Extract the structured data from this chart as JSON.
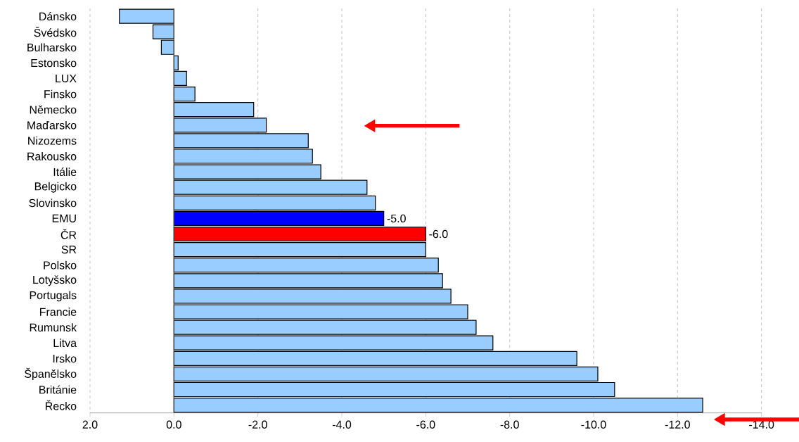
{
  "chart_data": {
    "type": "bar",
    "orientation": "horizontal",
    "categories": [
      "Dánsko",
      "Švédsko",
      "Bulharsko",
      "Estonsko",
      "LUX",
      "Finsko",
      "Německo",
      "Maďarsko",
      "Nizozems",
      "Rakousko",
      "Itálie",
      "Belgicko",
      "Slovinsko",
      "EMU",
      "ČR",
      "SR",
      "Polsko",
      "Lotyšsko",
      "Portugals",
      "Francie",
      "Rumunsk",
      "Litva",
      "Irsko",
      "Španělsko",
      "Británie",
      "Řecko"
    ],
    "values": [
      1.3,
      0.5,
      0.3,
      -0.1,
      -0.3,
      -0.5,
      -1.9,
      -2.2,
      -3.2,
      -3.3,
      -3.5,
      -4.6,
      -4.8,
      -5.0,
      -6.0,
      -6.0,
      -6.3,
      -6.4,
      -6.6,
      -7.0,
      -7.2,
      -7.6,
      -9.6,
      -10.1,
      -10.5,
      -12.6
    ],
    "colors": [
      "#99ccff",
      "#99ccff",
      "#99ccff",
      "#99ccff",
      "#99ccff",
      "#99ccff",
      "#99ccff",
      "#99ccff",
      "#99ccff",
      "#99ccff",
      "#99ccff",
      "#99ccff",
      "#99ccff",
      "#0000ff",
      "#ff0000",
      "#99ccff",
      "#99ccff",
      "#99ccff",
      "#99ccff",
      "#99ccff",
      "#99ccff",
      "#99ccff",
      "#99ccff",
      "#99ccff",
      "#99ccff",
      "#99ccff"
    ],
    "value_labels": [
      null,
      null,
      null,
      null,
      null,
      null,
      null,
      null,
      null,
      null,
      null,
      null,
      null,
      "-5.0",
      "-6.0",
      null,
      null,
      null,
      null,
      null,
      null,
      null,
      null,
      null,
      null,
      null
    ],
    "xlim": [
      2,
      -14
    ],
    "xticks": [
      {
        "value": 2,
        "label": "2.0"
      },
      {
        "value": 0,
        "label": "0.0"
      },
      {
        "value": -2,
        "label": "-2.0"
      },
      {
        "value": -4,
        "label": "-4.0"
      },
      {
        "value": -6,
        "label": "-6.0"
      },
      {
        "value": -8,
        "label": "-8.0"
      },
      {
        "value": -10,
        "label": "-10.0"
      },
      {
        "value": -12,
        "label": "-12.0"
      },
      {
        "value": -14,
        "label": "-14.0"
      }
    ],
    "grid": "x"
  }
}
